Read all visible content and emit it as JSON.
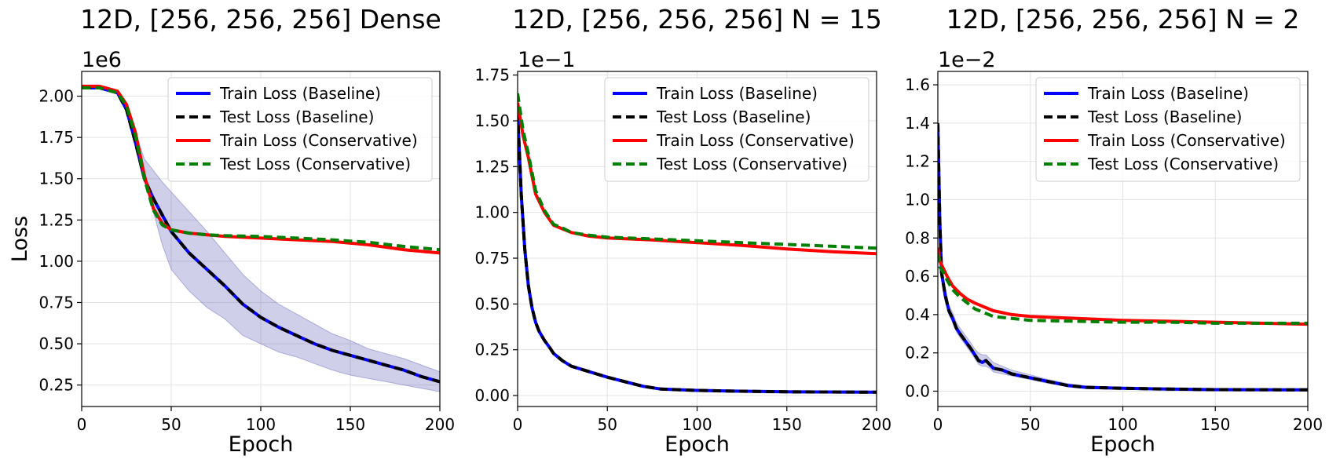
{
  "chart_data": [
    {
      "type": "line",
      "title": "12D, [256, 256, 256]  Dense",
      "xlabel": "Epoch",
      "ylabel": "Loss",
      "xlim": [
        0,
        200
      ],
      "ylim": [
        0.12,
        2.15
      ],
      "xticks": [
        0,
        50,
        100,
        150,
        200
      ],
      "xtick_labels": [
        "0",
        "50",
        "100",
        "150",
        "200"
      ],
      "yticks": [
        0.25,
        0.5,
        0.75,
        1.0,
        1.25,
        1.5,
        1.75,
        2.0
      ],
      "ytick_labels": [
        "0.25",
        "0.50",
        "0.75",
        "1.00",
        "1.25",
        "1.50",
        "1.75",
        "2.00"
      ],
      "scale_label": "1e6",
      "grid": true,
      "legend_position": "top-right",
      "series": [
        {
          "name": "Train Loss (Baseline)",
          "color": "#0000ff",
          "style": "solid",
          "x": [
            0,
            10,
            20,
            25,
            30,
            35,
            40,
            45,
            50,
            60,
            70,
            80,
            90,
            100,
            110,
            120,
            130,
            140,
            150,
            160,
            170,
            180,
            190,
            200
          ],
          "y": [
            2.05,
            2.05,
            2.02,
            1.92,
            1.72,
            1.5,
            1.38,
            1.28,
            1.18,
            1.05,
            0.95,
            0.85,
            0.74,
            0.66,
            0.6,
            0.55,
            0.5,
            0.46,
            0.43,
            0.4,
            0.37,
            0.34,
            0.3,
            0.27
          ],
          "band_low": [
            2.05,
            2.05,
            2.02,
            1.9,
            1.7,
            1.5,
            1.3,
            1.1,
            0.95,
            0.82,
            0.72,
            0.65,
            0.55,
            0.5,
            0.45,
            0.42,
            0.38,
            0.34,
            0.31,
            0.29,
            0.27,
            0.25,
            0.23,
            0.21
          ],
          "band_high": [
            2.05,
            2.05,
            2.02,
            1.95,
            1.78,
            1.62,
            1.55,
            1.48,
            1.42,
            1.3,
            1.18,
            1.05,
            0.92,
            0.82,
            0.74,
            0.68,
            0.62,
            0.56,
            0.52,
            0.47,
            0.44,
            0.41,
            0.37,
            0.33
          ]
        },
        {
          "name": "Test Loss (Baseline)",
          "color": "#000000",
          "style": "dashed",
          "x": [
            0,
            10,
            20,
            25,
            30,
            35,
            40,
            45,
            50,
            60,
            70,
            80,
            90,
            100,
            110,
            120,
            130,
            140,
            150,
            160,
            170,
            180,
            190,
            200
          ],
          "y": [
            2.05,
            2.05,
            2.02,
            1.92,
            1.72,
            1.5,
            1.38,
            1.28,
            1.18,
            1.05,
            0.95,
            0.85,
            0.74,
            0.66,
            0.6,
            0.55,
            0.5,
            0.46,
            0.43,
            0.4,
            0.37,
            0.34,
            0.3,
            0.27
          ]
        },
        {
          "name": "Train Loss (Conservative)",
          "color": "#ff0000",
          "style": "solid",
          "x": [
            0,
            10,
            20,
            25,
            30,
            35,
            40,
            45,
            50,
            60,
            70,
            80,
            100,
            120,
            140,
            160,
            180,
            200
          ],
          "y": [
            2.06,
            2.06,
            2.03,
            1.95,
            1.78,
            1.52,
            1.32,
            1.23,
            1.19,
            1.17,
            1.16,
            1.15,
            1.14,
            1.13,
            1.12,
            1.1,
            1.07,
            1.05
          ]
        },
        {
          "name": "Test Loss (Conservative)",
          "color": "#008000",
          "style": "dashed",
          "x": [
            0,
            10,
            20,
            25,
            30,
            35,
            40,
            45,
            50,
            60,
            70,
            80,
            100,
            120,
            140,
            160,
            180,
            200
          ],
          "y": [
            2.05,
            2.05,
            2.02,
            1.94,
            1.76,
            1.5,
            1.31,
            1.22,
            1.19,
            1.17,
            1.16,
            1.155,
            1.15,
            1.14,
            1.13,
            1.115,
            1.09,
            1.07
          ]
        }
      ]
    },
    {
      "type": "line",
      "title": "12D, [256, 256, 256]  N = 15",
      "xlabel": "Epoch",
      "ylabel": "",
      "xlim": [
        0,
        200
      ],
      "ylim": [
        -0.06,
        1.77
      ],
      "xticks": [
        0,
        50,
        100,
        150,
        200
      ],
      "xtick_labels": [
        "0",
        "50",
        "100",
        "150",
        "200"
      ],
      "yticks": [
        0.0,
        0.25,
        0.5,
        0.75,
        1.0,
        1.25,
        1.5,
        1.75
      ],
      "ytick_labels": [
        "0.00",
        "0.25",
        "0.50",
        "0.75",
        "1.00",
        "1.25",
        "1.50",
        "1.75"
      ],
      "scale_label": "1e−1",
      "grid": true,
      "legend_position": "top-right",
      "series": [
        {
          "name": "Train Loss (Baseline)",
          "color": "#0000ff",
          "style": "solid",
          "x": [
            0,
            2,
            4,
            6,
            8,
            10,
            12,
            15,
            18,
            20,
            25,
            30,
            40,
            50,
            60,
            70,
            80,
            100,
            120,
            150,
            200
          ],
          "y": [
            1.55,
            1.1,
            0.8,
            0.6,
            0.48,
            0.4,
            0.35,
            0.3,
            0.26,
            0.23,
            0.19,
            0.16,
            0.13,
            0.1,
            0.075,
            0.05,
            0.035,
            0.028,
            0.024,
            0.02,
            0.018
          ]
        },
        {
          "name": "Test Loss (Baseline)",
          "color": "#000000",
          "style": "dashed",
          "x": [
            0,
            2,
            4,
            6,
            8,
            10,
            12,
            15,
            18,
            20,
            25,
            30,
            40,
            50,
            60,
            70,
            80,
            100,
            120,
            150,
            200
          ],
          "y": [
            1.55,
            1.1,
            0.8,
            0.6,
            0.48,
            0.4,
            0.35,
            0.3,
            0.26,
            0.23,
            0.19,
            0.16,
            0.13,
            0.1,
            0.075,
            0.05,
            0.035,
            0.028,
            0.024,
            0.02,
            0.018
          ]
        },
        {
          "name": "Train Loss (Conservative)",
          "color": "#ff0000",
          "style": "solid",
          "x": [
            0,
            3,
            6,
            10,
            15,
            20,
            25,
            30,
            40,
            50,
            75,
            100,
            125,
            150,
            175,
            200
          ],
          "y": [
            1.6,
            1.42,
            1.3,
            1.1,
            1.0,
            0.93,
            0.91,
            0.89,
            0.87,
            0.86,
            0.85,
            0.835,
            0.82,
            0.8,
            0.785,
            0.775
          ]
        },
        {
          "name": "Test Loss (Conservative)",
          "color": "#008000",
          "style": "dashed",
          "x": [
            0,
            3,
            6,
            10,
            15,
            20,
            25,
            30,
            40,
            50,
            75,
            100,
            125,
            150,
            175,
            200
          ],
          "y": [
            1.65,
            1.45,
            1.32,
            1.12,
            1.01,
            0.935,
            0.915,
            0.89,
            0.875,
            0.865,
            0.855,
            0.845,
            0.835,
            0.825,
            0.815,
            0.805
          ]
        }
      ]
    },
    {
      "type": "line",
      "title": "12D, [256, 256, 256]  N = 2",
      "xlabel": "Epoch",
      "ylabel": "",
      "xlim": [
        0,
        200
      ],
      "ylim": [
        -0.08,
        1.67
      ],
      "xticks": [
        0,
        50,
        100,
        150,
        200
      ],
      "xtick_labels": [
        "0",
        "50",
        "100",
        "150",
        "200"
      ],
      "yticks": [
        0.0,
        0.2,
        0.4,
        0.6,
        0.8,
        1.0,
        1.2,
        1.4,
        1.6
      ],
      "ytick_labels": [
        "0.0",
        "0.2",
        "0.4",
        "0.6",
        "0.8",
        "1.0",
        "1.2",
        "1.4",
        "1.6"
      ],
      "scale_label": "1e−2",
      "grid": true,
      "legend_position": "top-right",
      "series": [
        {
          "name": "Train Loss (Baseline)",
          "color": "#0000ff",
          "style": "solid",
          "x": [
            0,
            1,
            2,
            4,
            6,
            8,
            10,
            12,
            15,
            18,
            20,
            22,
            24,
            26,
            28,
            30,
            35,
            40,
            50,
            60,
            70,
            80,
            100,
            120,
            150,
            200
          ],
          "y": [
            1.4,
            0.9,
            0.62,
            0.5,
            0.42,
            0.38,
            0.33,
            0.3,
            0.26,
            0.22,
            0.19,
            0.16,
            0.15,
            0.16,
            0.14,
            0.12,
            0.11,
            0.09,
            0.07,
            0.05,
            0.03,
            0.02,
            0.015,
            0.012,
            0.008,
            0.007
          ],
          "band_low": [
            1.4,
            0.85,
            0.58,
            0.47,
            0.4,
            0.36,
            0.31,
            0.28,
            0.24,
            0.2,
            0.17,
            0.14,
            0.13,
            0.13,
            0.12,
            0.1,
            0.09,
            0.08,
            0.06,
            0.04,
            0.025,
            0.015,
            0.01,
            0.008,
            0.005,
            0.004
          ],
          "band_high": [
            1.42,
            0.95,
            0.66,
            0.54,
            0.45,
            0.41,
            0.36,
            0.33,
            0.29,
            0.25,
            0.22,
            0.2,
            0.19,
            0.19,
            0.17,
            0.15,
            0.13,
            0.11,
            0.085,
            0.06,
            0.04,
            0.028,
            0.02,
            0.016,
            0.012,
            0.01
          ]
        },
        {
          "name": "Test Loss (Baseline)",
          "color": "#000000",
          "style": "dashed",
          "x": [
            0,
            1,
            2,
            4,
            6,
            8,
            10,
            12,
            15,
            18,
            20,
            22,
            24,
            26,
            28,
            30,
            35,
            40,
            50,
            60,
            70,
            80,
            100,
            120,
            150,
            200
          ],
          "y": [
            1.4,
            0.9,
            0.62,
            0.5,
            0.42,
            0.38,
            0.33,
            0.3,
            0.26,
            0.22,
            0.19,
            0.16,
            0.15,
            0.16,
            0.14,
            0.12,
            0.11,
            0.09,
            0.07,
            0.05,
            0.03,
            0.02,
            0.015,
            0.012,
            0.008,
            0.007
          ]
        },
        {
          "name": "Train Loss (Conservative)",
          "color": "#ff0000",
          "style": "solid",
          "x": [
            0,
            1,
            3,
            5,
            8,
            12,
            16,
            20,
            25,
            30,
            40,
            50,
            75,
            100,
            125,
            150,
            175,
            200
          ],
          "y": [
            0.75,
            0.68,
            0.64,
            0.6,
            0.55,
            0.51,
            0.48,
            0.46,
            0.44,
            0.42,
            0.4,
            0.39,
            0.38,
            0.37,
            0.365,
            0.36,
            0.355,
            0.35
          ]
        },
        {
          "name": "Test Loss (Conservative)",
          "color": "#008000",
          "style": "dashed",
          "x": [
            0,
            1,
            3,
            5,
            8,
            12,
            16,
            20,
            25,
            30,
            40,
            50,
            75,
            100,
            125,
            150,
            175,
            200
          ],
          "y": [
            0.72,
            0.65,
            0.62,
            0.58,
            0.53,
            0.49,
            0.46,
            0.43,
            0.41,
            0.39,
            0.38,
            0.37,
            0.365,
            0.36,
            0.36,
            0.355,
            0.355,
            0.355
          ]
        }
      ]
    }
  ]
}
